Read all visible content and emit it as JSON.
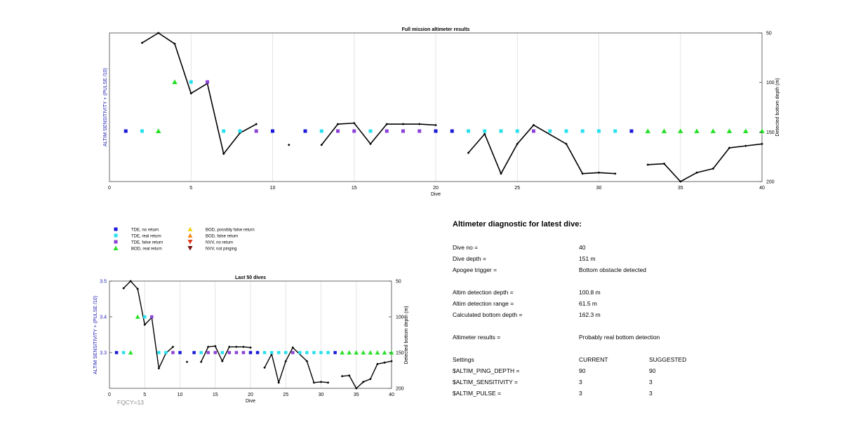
{
  "chart_data": [
    {
      "type": "scatter",
      "title": "Full mission altimeter results",
      "xlabel": "Dive",
      "ylabel": "ALTIM SENSITIVITY + (PULSE /10)",
      "ylabel_right": "Detected bottom depth (m)",
      "xlim": [
        0,
        40
      ],
      "ylim": [
        3.25,
        3.5
      ],
      "ylim_right": [
        200,
        50
      ],
      "x_ticks": [
        "0",
        "5",
        "10",
        "15",
        "20",
        "25",
        "30",
        "35",
        "40"
      ],
      "y_right_ticks": [
        "50",
        "100",
        "150",
        "200"
      ],
      "grid": "vertical",
      "markers": {
        "tde_no_return": [
          1,
          10,
          12,
          20,
          21,
          32
        ],
        "tde_real_return": [
          2,
          5,
          7,
          8,
          13,
          16,
          22,
          23,
          24,
          25,
          27,
          28,
          29,
          30,
          31
        ],
        "tde_false_return": [
          6,
          9,
          14,
          15,
          17,
          18,
          19,
          26
        ],
        "bod_real_return": [
          3,
          4,
          33,
          34,
          35,
          36,
          37,
          38,
          39,
          40
        ]
      },
      "marker_levels": {
        "3.4": [
          4,
          5,
          6
        ],
        "3.3": "others"
      },
      "bottom_depth_series": [
        [
          [
            2,
            60
          ],
          [
            3,
            50
          ],
          [
            4,
            61
          ],
          [
            5,
            111
          ],
          [
            6,
            101
          ],
          [
            7,
            172
          ],
          [
            8,
            151
          ],
          [
            9,
            142
          ]
        ],
        [
          [
            11,
            163
          ]
        ],
        [
          [
            13,
            163
          ],
          [
            14,
            142
          ],
          [
            15,
            141
          ],
          [
            16,
            162
          ],
          [
            17,
            142
          ],
          [
            18,
            142
          ],
          [
            19,
            142
          ],
          [
            20,
            143
          ]
        ],
        [
          [
            22,
            171
          ],
          [
            23,
            152
          ],
          [
            24,
            192
          ],
          [
            25,
            162
          ],
          [
            26,
            143
          ],
          [
            28,
            162
          ],
          [
            29,
            192
          ],
          [
            30,
            191
          ],
          [
            31,
            192
          ]
        ],
        [
          [
            33,
            183
          ],
          [
            34,
            182
          ],
          [
            35,
            200
          ],
          [
            36,
            191
          ],
          [
            37,
            187
          ],
          [
            38,
            166
          ],
          [
            39,
            164
          ],
          [
            40,
            162
          ]
        ]
      ]
    },
    {
      "type": "scatter",
      "title": "Last 50 dives",
      "xlabel": "Dive",
      "ylabel": "ALTIM SENSITIVITY + (PULSE /10)",
      "ylabel_right": "Detected bottom depth (m)",
      "xlim": [
        0,
        40
      ],
      "ylim": [
        3.2,
        3.5
      ],
      "ylim_right": [
        200,
        50
      ],
      "x_ticks": [
        "0",
        "5",
        "10",
        "15",
        "20",
        "25",
        "30",
        "35",
        "40"
      ],
      "y_ticks": [
        "3.3",
        "3.4",
        "3.5"
      ],
      "y_right_ticks": [
        "50",
        "100",
        "150",
        "200"
      ],
      "grid": "vertical"
    }
  ],
  "legend": {
    "col1": [
      {
        "label": "TDE, no return",
        "marker": "square",
        "color": "#1a1ad9"
      },
      {
        "label": "TDE, real return",
        "marker": "square",
        "color": "#29e0ee"
      },
      {
        "label": "TDE, false return",
        "marker": "square",
        "color": "#8b42d6"
      },
      {
        "label": "BOD, real return",
        "marker": "triangle-up",
        "color": "#28e028"
      }
    ],
    "col2": [
      {
        "label": "BOD, possibly false return",
        "marker": "triangle-up",
        "color": "#f2d21d"
      },
      {
        "label": "BOD, false return",
        "marker": "triangle-up",
        "color": "#f28c1d"
      },
      {
        "label": "NVV, no return",
        "marker": "triangle-down",
        "color": "#e03a1c"
      },
      {
        "label": "NVV, not pinging",
        "marker": "triangle-down",
        "color": "#7a1010"
      }
    ]
  },
  "fqcy_label": "FQCY=13",
  "diagnostic": {
    "title": "Altimeter diagnostic for latest dive:",
    "rows": [
      {
        "k": "Dive no =",
        "v": "40",
        "s": ""
      },
      {
        "k": "Dive depth =",
        "v": "151 m",
        "s": ""
      },
      {
        "k": "Apogee trigger =",
        "v": "Bottom obstacle detected",
        "s": ""
      },
      {
        "k": "Altim detection depth =",
        "v": "100.8 m",
        "s": ""
      },
      {
        "k": "Altim detection range =",
        "v": "61.5 m",
        "s": ""
      },
      {
        "k": "Calculated bottom depth =",
        "v": "162.3 m",
        "s": ""
      },
      {
        "k": "Altimeter results =",
        "v": "Probably real bottom detection",
        "s": ""
      },
      {
        "k": "Settings",
        "v": "CURRENT",
        "s": "SUGGESTED"
      },
      {
        "k": "$ALTIM_PING_DEPTH =",
        "v": "90",
        "s": "90"
      },
      {
        "k": "$ALTIM_SENSITIVITY =",
        "v": "3",
        "s": "3"
      },
      {
        "k": "$ALTIM_PULSE =",
        "v": "3",
        "s": "3"
      }
    ]
  },
  "colors": {
    "tde_no_return": "#1a1ad9",
    "tde_real_return": "#29e0ee",
    "tde_false_return": "#8b42d6",
    "bod_real_return": "#28e028",
    "axis_left": "#1a1ab0",
    "line": "#000000",
    "grid": "#dddddd"
  }
}
